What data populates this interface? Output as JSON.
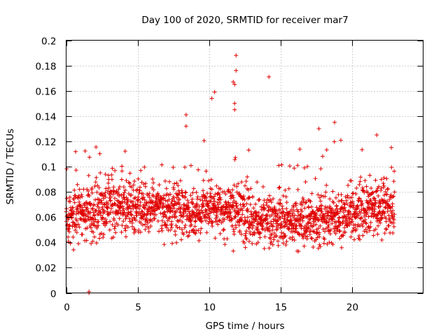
{
  "chart_data": {
    "type": "scatter",
    "title": "Day 100 of 2020, SRMTID for receiver mar7",
    "xlabel": "GPS time / hours",
    "ylabel": "SRMTID / TECUs",
    "xlim": [
      0,
      25
    ],
    "ylim": [
      0,
      0.2
    ],
    "x_ticks": [
      0,
      5,
      10,
      15,
      20
    ],
    "x_tick_labels": [
      "0",
      "5",
      "10",
      "15",
      "20"
    ],
    "y_ticks": [
      0,
      0.02,
      0.04,
      0.06,
      0.08,
      0.1,
      0.12,
      0.14,
      0.16,
      0.18,
      0.2
    ],
    "y_tick_labels": [
      "0",
      "0.02",
      "0.04",
      "0.06",
      "0.08",
      "0.1",
      "0.12",
      "0.14",
      "0.16",
      "0.18",
      "0.2"
    ],
    "grid": true,
    "marker": "+",
    "color": "#e00000",
    "series": [
      {
        "name": "SRMTID",
        "x_range": [
          0,
          23
        ],
        "n_points": 2000,
        "typical_min": 0.02,
        "typical_max": 0.1,
        "notable_points": [
          {
            "x": 1.6,
            "y": 0.0
          },
          {
            "x": 1.6,
            "y": 0.001
          },
          {
            "x": 8.4,
            "y": 0.141
          },
          {
            "x": 8.4,
            "y": 0.132
          },
          {
            "x": 10.4,
            "y": 0.159
          },
          {
            "x": 10.2,
            "y": 0.154
          },
          {
            "x": 11.7,
            "y": 0.167
          },
          {
            "x": 11.8,
            "y": 0.165
          },
          {
            "x": 11.9,
            "y": 0.176
          },
          {
            "x": 11.9,
            "y": 0.188
          },
          {
            "x": 11.8,
            "y": 0.15
          },
          {
            "x": 11.8,
            "y": 0.145
          },
          {
            "x": 14.2,
            "y": 0.171
          },
          {
            "x": 18.8,
            "y": 0.135
          },
          {
            "x": 17.7,
            "y": 0.13
          }
        ]
      }
    ]
  }
}
